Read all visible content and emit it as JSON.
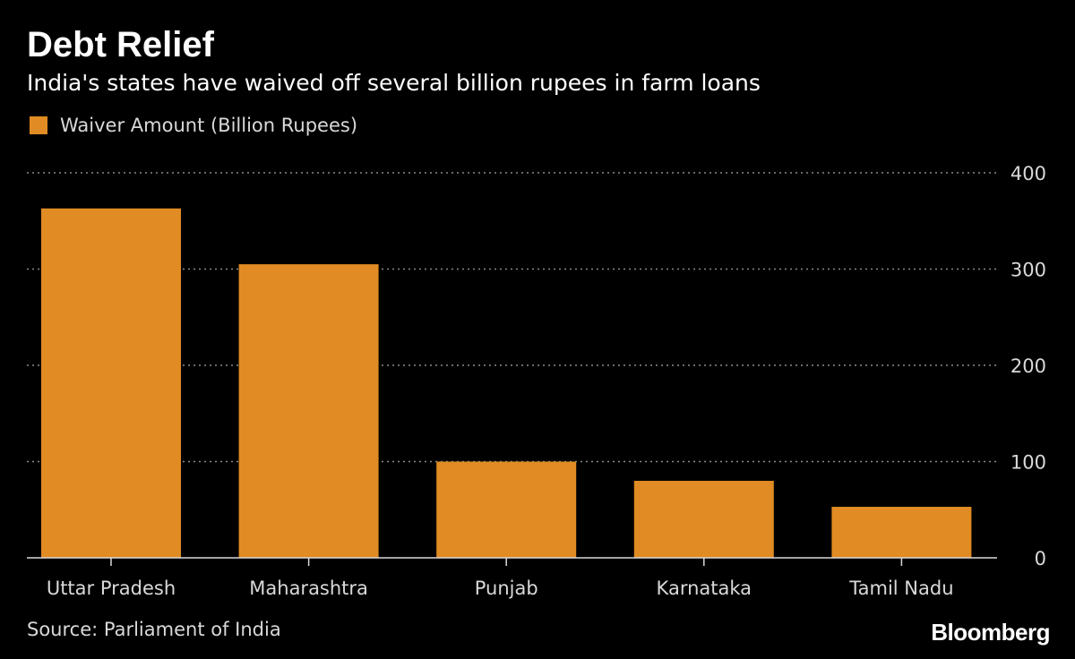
{
  "header": {
    "title": "Debt Relief",
    "subtitle": "India's states have waived off several billion rupees in farm loans"
  },
  "footer": {
    "source": "Source: Parliament of India",
    "brand": "Bloomberg"
  },
  "colors": {
    "bar": "#e08b23",
    "grid": "#8a8a8a",
    "axis_text": "#d9d9d9",
    "background": "#000000"
  },
  "chart_data": {
    "type": "bar",
    "categories": [
      "Uttar Pradesh",
      "Maharashtra",
      "Punjab",
      "Karnataka",
      "Tamil Nadu"
    ],
    "series": [
      {
        "name": "Waiver Amount (Billion Rupees)",
        "values": [
          363,
          305,
          100,
          80,
          53
        ]
      }
    ],
    "yticks": [
      "0",
      "100",
      "200",
      "300",
      "400"
    ],
    "ylim": [
      0,
      400
    ],
    "grid": true,
    "legend": "top-left",
    "y_axis_side": "right"
  }
}
